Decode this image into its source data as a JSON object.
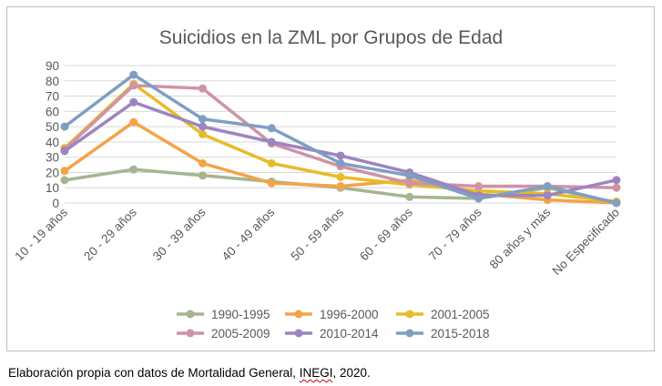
{
  "chart_data": {
    "type": "line",
    "title": "Suicidios en la ZML por Grupos de Edad",
    "xlabel": "",
    "ylabel": "",
    "categories": [
      "10 - 19 años",
      "20 - 29 años",
      "30 - 39 años",
      "40 - 49 años",
      "50 - 59 años",
      "60 - 69 años",
      "70 - 79 años",
      "80 años y más",
      "No Especificado"
    ],
    "yticks": [
      "0",
      "10",
      "20",
      "30",
      "40",
      "50",
      "60",
      "70",
      "80",
      "90"
    ],
    "ylim": [
      0,
      90
    ],
    "grid": true,
    "legend_position": "bottom",
    "series": [
      {
        "name": "1990-1995",
        "color": "#a5b592",
        "values": [
          15,
          22,
          18,
          14,
          10,
          4,
          3,
          10,
          0
        ]
      },
      {
        "name": "1996-2000",
        "color": "#f3a447",
        "values": [
          21,
          53,
          26,
          13,
          11,
          15,
          6,
          2,
          0
        ]
      },
      {
        "name": "2001-2005",
        "color": "#e7bc29",
        "values": [
          36,
          78,
          45,
          26,
          17,
          12,
          8,
          6,
          1
        ]
      },
      {
        "name": "2005-2009",
        "color": "#d092a7",
        "values": [
          35,
          77,
          75,
          39,
          24,
          13,
          11,
          11,
          10
        ]
      },
      {
        "name": "2010-2014",
        "color": "#9c85c0",
        "values": [
          34,
          66,
          50,
          40,
          31,
          20,
          5,
          5,
          15
        ]
      },
      {
        "name": "2015-2018",
        "color": "#809ec2",
        "values": [
          50,
          84,
          55,
          49,
          26,
          18,
          3,
          11,
          0
        ]
      }
    ]
  },
  "caption": {
    "before": "Elaboración propia con datos de Mortalidad General, ",
    "underlined": "INEGI",
    "after": ", 2020."
  }
}
